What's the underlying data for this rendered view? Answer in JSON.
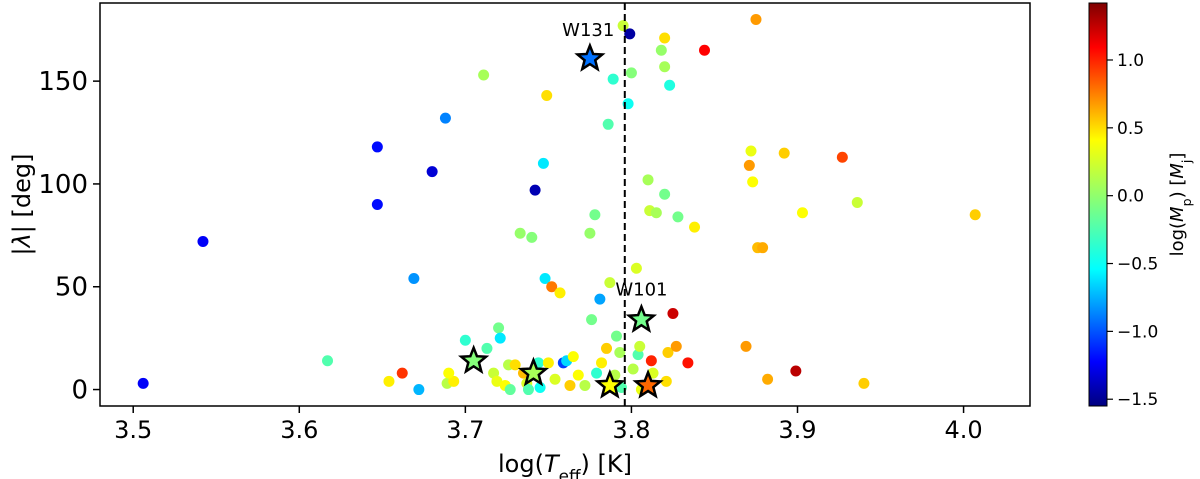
{
  "chart_data": {
    "type": "scatter",
    "xlabel_parts": {
      "pre": "log(",
      "italic": "T",
      "sub": "eff",
      "post": ") [K]"
    },
    "ylabel_parts": {
      "pre": "|",
      "italic": "λ",
      "post": "| [deg]"
    },
    "colorbar_label_parts": {
      "pre": "log(",
      "italic": "M",
      "sub": "p",
      "mid": ") [",
      "italic2": "M",
      "sub2": "j",
      "post": "]"
    },
    "xlim": [
      3.48,
      4.04
    ],
    "ylim": [
      -8,
      188
    ],
    "x_ticks": [
      3.5,
      3.6,
      3.7,
      3.8,
      3.9,
      4.0
    ],
    "x_tick_labels": [
      "3.5",
      "3.6",
      "3.7",
      "3.8",
      "3.9",
      "4.0"
    ],
    "y_ticks": [
      0,
      50,
      100,
      150
    ],
    "y_tick_labels": [
      "0",
      "50",
      "100",
      "150"
    ],
    "colorbar": {
      "colormap": "jet",
      "range": [
        -1.55,
        1.42
      ],
      "ticks": [
        -1.5,
        -1.0,
        -0.5,
        0.0,
        0.5,
        1.0
      ],
      "tick_labels": [
        "−1.5",
        "−1.0",
        "−0.5",
        "0.0",
        "0.5",
        "1.0"
      ]
    },
    "vline": {
      "x": 3.796,
      "style": "dashed"
    },
    "grid": false,
    "points": [
      {
        "x": 3.506,
        "y": 3,
        "c": -1.2
      },
      {
        "x": 3.542,
        "y": 72,
        "c": -1.2
      },
      {
        "x": 3.617,
        "y": 14,
        "c": -0.2
      },
      {
        "x": 3.647,
        "y": 118,
        "c": -1.15
      },
      {
        "x": 3.647,
        "y": 90,
        "c": -1.15
      },
      {
        "x": 3.654,
        "y": 4,
        "c": 0.35
      },
      {
        "x": 3.662,
        "y": 8,
        "c": 0.9
      },
      {
        "x": 3.669,
        "y": 54,
        "c": -0.75
      },
      {
        "x": 3.672,
        "y": 0,
        "c": -0.65
      },
      {
        "x": 3.68,
        "y": 106,
        "c": -1.3
      },
      {
        "x": 3.688,
        "y": 132,
        "c": -0.8
      },
      {
        "x": 3.689,
        "y": 3,
        "c": 0.1
      },
      {
        "x": 3.693,
        "y": 4,
        "c": 0.35
      },
      {
        "x": 3.69,
        "y": 8,
        "c": 0.3
      },
      {
        "x": 3.7,
        "y": 24,
        "c": -0.3
      },
      {
        "x": 3.711,
        "y": 153,
        "c": 0.05
      },
      {
        "x": 3.713,
        "y": 20,
        "c": -0.2
      },
      {
        "x": 3.717,
        "y": 8,
        "c": 0.15
      },
      {
        "x": 3.719,
        "y": 4,
        "c": 0.25
      },
      {
        "x": 3.72,
        "y": 30,
        "c": -0.1
      },
      {
        "x": 3.721,
        "y": 25,
        "c": -0.5
      },
      {
        "x": 3.724,
        "y": 2,
        "c": 0.3
      },
      {
        "x": 3.726,
        "y": 12,
        "c": 0.1
      },
      {
        "x": 3.727,
        "y": 0,
        "c": -0.15
      },
      {
        "x": 3.73,
        "y": 12,
        "c": 0.4
      },
      {
        "x": 3.733,
        "y": 76,
        "c": 0.0
      },
      {
        "x": 3.735,
        "y": 8,
        "c": 0.5
      },
      {
        "x": 3.737,
        "y": 3,
        "c": 0.2
      },
      {
        "x": 3.738,
        "y": 0,
        "c": -0.2
      },
      {
        "x": 3.74,
        "y": 74,
        "c": -0.05
      },
      {
        "x": 3.742,
        "y": 97,
        "c": -1.4
      },
      {
        "x": 3.744,
        "y": 13,
        "c": -0.3
      },
      {
        "x": 3.745,
        "y": 1,
        "c": -0.4
      },
      {
        "x": 3.747,
        "y": 110,
        "c": -0.5
      },
      {
        "x": 3.748,
        "y": 54,
        "c": -0.5
      },
      {
        "x": 3.749,
        "y": 143,
        "c": 0.4
      },
      {
        "x": 3.75,
        "y": 13,
        "c": 0.35
      },
      {
        "x": 3.752,
        "y": 50,
        "c": 0.7
      },
      {
        "x": 3.754,
        "y": 5,
        "c": 0.2
      },
      {
        "x": 3.757,
        "y": 47,
        "c": 0.35
      },
      {
        "x": 3.759,
        "y": 13,
        "c": -1.0
      },
      {
        "x": 3.761,
        "y": 14,
        "c": -0.55
      },
      {
        "x": 3.763,
        "y": 2,
        "c": 0.45
      },
      {
        "x": 3.765,
        "y": 16,
        "c": 0.3
      },
      {
        "x": 3.768,
        "y": 7,
        "c": 0.3
      },
      {
        "x": 3.772,
        "y": 2,
        "c": 0.1
      },
      {
        "x": 3.775,
        "y": 76,
        "c": 0.0
      },
      {
        "x": 3.776,
        "y": 34,
        "c": -0.1
      },
      {
        "x": 3.778,
        "y": 85,
        "c": -0.1
      },
      {
        "x": 3.779,
        "y": 8,
        "c": -0.3
      },
      {
        "x": 3.781,
        "y": 44,
        "c": -0.7
      },
      {
        "x": 3.782,
        "y": 13,
        "c": 0.35
      },
      {
        "x": 3.785,
        "y": 20,
        "c": 0.45
      },
      {
        "x": 3.786,
        "y": 129,
        "c": -0.2
      },
      {
        "x": 3.787,
        "y": 52,
        "c": 0.15
      },
      {
        "x": 3.789,
        "y": 151,
        "c": -0.3
      },
      {
        "x": 3.79,
        "y": 7,
        "c": 0.1
      },
      {
        "x": 3.791,
        "y": 26,
        "c": -0.1
      },
      {
        "x": 3.793,
        "y": 18,
        "c": 0.05
      },
      {
        "x": 3.794,
        "y": 1,
        "c": -0.2
      },
      {
        "x": 3.795,
        "y": 177,
        "c": 0.15
      },
      {
        "x": 3.798,
        "y": 139,
        "c": -0.4
      },
      {
        "x": 3.799,
        "y": 173,
        "c": -1.45
      },
      {
        "x": 3.8,
        "y": 154,
        "c": -0.05
      },
      {
        "x": 3.801,
        "y": 10,
        "c": 0.1
      },
      {
        "x": 3.803,
        "y": 59,
        "c": 0.2
      },
      {
        "x": 3.804,
        "y": 17,
        "c": -0.2
      },
      {
        "x": 3.805,
        "y": 21,
        "c": 0.15
      },
      {
        "x": 3.806,
        "y": 0,
        "c": 0.25
      },
      {
        "x": 3.81,
        "y": 102,
        "c": 0.05
      },
      {
        "x": 3.811,
        "y": 87,
        "c": 0.15
      },
      {
        "x": 3.812,
        "y": 14,
        "c": 0.95
      },
      {
        "x": 3.813,
        "y": 8,
        "c": 0.2
      },
      {
        "x": 3.815,
        "y": 86,
        "c": 0.05
      },
      {
        "x": 3.818,
        "y": 165,
        "c": 0.0
      },
      {
        "x": 3.82,
        "y": 171,
        "c": 0.4
      },
      {
        "x": 3.82,
        "y": 95,
        "c": -0.1
      },
      {
        "x": 3.82,
        "y": 157,
        "c": 0.05
      },
      {
        "x": 3.821,
        "y": 4,
        "c": 0.4
      },
      {
        "x": 3.822,
        "y": 18,
        "c": 0.45
      },
      {
        "x": 3.823,
        "y": 148,
        "c": -0.35
      },
      {
        "x": 3.825,
        "y": 37,
        "c": 1.2
      },
      {
        "x": 3.827,
        "y": 21,
        "c": 0.6
      },
      {
        "x": 3.828,
        "y": 84,
        "c": -0.1
      },
      {
        "x": 3.834,
        "y": 13,
        "c": 1.0
      },
      {
        "x": 3.838,
        "y": 79,
        "c": 0.35
      },
      {
        "x": 3.844,
        "y": 165,
        "c": 1.05
      },
      {
        "x": 3.869,
        "y": 21,
        "c": 0.6
      },
      {
        "x": 3.871,
        "y": 109,
        "c": 0.6
      },
      {
        "x": 3.872,
        "y": 116,
        "c": 0.25
      },
      {
        "x": 3.873,
        "y": 101,
        "c": 0.3
      },
      {
        "x": 3.875,
        "y": 180,
        "c": 0.6
      },
      {
        "x": 3.876,
        "y": 69,
        "c": 0.5
      },
      {
        "x": 3.879,
        "y": 69,
        "c": 0.55
      },
      {
        "x": 3.882,
        "y": 5,
        "c": 0.55
      },
      {
        "x": 3.892,
        "y": 115,
        "c": 0.45
      },
      {
        "x": 3.899,
        "y": 9,
        "c": 1.25
      },
      {
        "x": 3.903,
        "y": 86,
        "c": 0.3
      },
      {
        "x": 3.927,
        "y": 113,
        "c": 0.85
      },
      {
        "x": 3.936,
        "y": 91,
        "c": 0.15
      },
      {
        "x": 3.94,
        "y": 3,
        "c": 0.45
      },
      {
        "x": 4.007,
        "y": 85,
        "c": 0.45
      }
    ],
    "star_points": [
      {
        "x": 3.775,
        "y": 161,
        "c": -0.85
      },
      {
        "x": 3.806,
        "y": 34,
        "c": -0.1
      },
      {
        "x": 3.705,
        "y": 14,
        "c": -0.05
      },
      {
        "x": 3.741,
        "y": 8,
        "c": 0.05
      },
      {
        "x": 3.787,
        "y": 2,
        "c": 0.3
      },
      {
        "x": 3.81,
        "y": 2,
        "c": 0.75
      }
    ],
    "annotations": [
      {
        "text": "W131",
        "x": 3.774,
        "y": 166
      },
      {
        "text": "W101",
        "x": 3.806,
        "y": 40
      }
    ]
  }
}
